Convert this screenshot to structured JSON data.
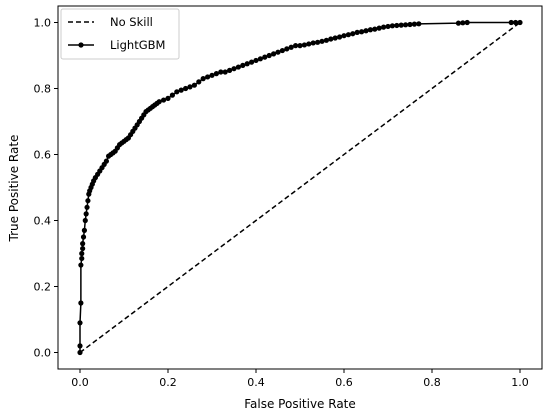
{
  "chart_data": {
    "type": "line",
    "title": "",
    "xlabel": "False Positive Rate",
    "ylabel": "True Positive Rate",
    "xlim": [
      -0.05,
      1.05
    ],
    "ylim": [
      -0.05,
      1.05
    ],
    "xticks": [
      0.0,
      0.2,
      0.4,
      0.6,
      0.8,
      1.0
    ],
    "yticks": [
      0.0,
      0.2,
      0.4,
      0.6,
      0.8,
      1.0
    ],
    "xtick_labels": [
      "0.0",
      "0.2",
      "0.4",
      "0.6",
      "0.8",
      "1.0"
    ],
    "ytick_labels": [
      "0.0",
      "0.2",
      "0.4",
      "0.6",
      "0.8",
      "1.0"
    ],
    "grid": false,
    "legend_position": "top-left",
    "series": [
      {
        "name": "No Skill",
        "style": "dashed",
        "marker": "none",
        "color": "#000000",
        "x": [
          0.0,
          1.0
        ],
        "y": [
          0.0,
          1.0
        ]
      },
      {
        "name": "LightGBM",
        "style": "solid",
        "marker": "circle",
        "color": "#000000",
        "x": [
          0.0,
          0.0,
          0.0,
          0.002,
          0.002,
          0.004,
          0.004,
          0.006,
          0.006,
          0.008,
          0.01,
          0.012,
          0.014,
          0.016,
          0.018,
          0.02,
          0.022,
          0.025,
          0.028,
          0.031,
          0.035,
          0.04,
          0.045,
          0.05,
          0.055,
          0.06,
          0.065,
          0.07,
          0.075,
          0.08,
          0.085,
          0.09,
          0.095,
          0.1,
          0.105,
          0.11,
          0.115,
          0.12,
          0.125,
          0.13,
          0.135,
          0.14,
          0.145,
          0.15,
          0.155,
          0.16,
          0.165,
          0.17,
          0.175,
          0.18,
          0.19,
          0.2,
          0.21,
          0.22,
          0.23,
          0.24,
          0.25,
          0.26,
          0.27,
          0.28,
          0.29,
          0.3,
          0.31,
          0.32,
          0.33,
          0.34,
          0.35,
          0.36,
          0.37,
          0.38,
          0.39,
          0.4,
          0.41,
          0.42,
          0.43,
          0.44,
          0.45,
          0.46,
          0.47,
          0.48,
          0.49,
          0.5,
          0.51,
          0.52,
          0.53,
          0.54,
          0.55,
          0.56,
          0.57,
          0.58,
          0.59,
          0.6,
          0.61,
          0.62,
          0.63,
          0.64,
          0.65,
          0.66,
          0.67,
          0.68,
          0.69,
          0.7,
          0.71,
          0.72,
          0.73,
          0.74,
          0.75,
          0.76,
          0.77,
          0.86,
          0.87,
          0.88,
          0.98,
          0.99,
          1.0
        ],
        "y": [
          0.0,
          0.02,
          0.09,
          0.15,
          0.265,
          0.285,
          0.3,
          0.315,
          0.33,
          0.35,
          0.37,
          0.4,
          0.42,
          0.44,
          0.46,
          0.48,
          0.49,
          0.5,
          0.51,
          0.52,
          0.53,
          0.54,
          0.55,
          0.56,
          0.57,
          0.58,
          0.595,
          0.6,
          0.605,
          0.61,
          0.62,
          0.63,
          0.635,
          0.64,
          0.645,
          0.65,
          0.66,
          0.67,
          0.68,
          0.69,
          0.7,
          0.71,
          0.72,
          0.73,
          0.735,
          0.74,
          0.745,
          0.75,
          0.755,
          0.76,
          0.765,
          0.77,
          0.78,
          0.79,
          0.795,
          0.8,
          0.805,
          0.81,
          0.82,
          0.83,
          0.835,
          0.84,
          0.845,
          0.85,
          0.85,
          0.855,
          0.86,
          0.865,
          0.87,
          0.875,
          0.88,
          0.885,
          0.89,
          0.895,
          0.9,
          0.905,
          0.91,
          0.915,
          0.92,
          0.925,
          0.93,
          0.93,
          0.932,
          0.935,
          0.938,
          0.94,
          0.943,
          0.946,
          0.95,
          0.953,
          0.956,
          0.96,
          0.963,
          0.966,
          0.97,
          0.972,
          0.975,
          0.978,
          0.98,
          0.983,
          0.986,
          0.988,
          0.99,
          0.991,
          0.992,
          0.993,
          0.994,
          0.995,
          0.996,
          0.998,
          0.999,
          1.0,
          1.0,
          1.0,
          1.0
        ]
      }
    ]
  }
}
